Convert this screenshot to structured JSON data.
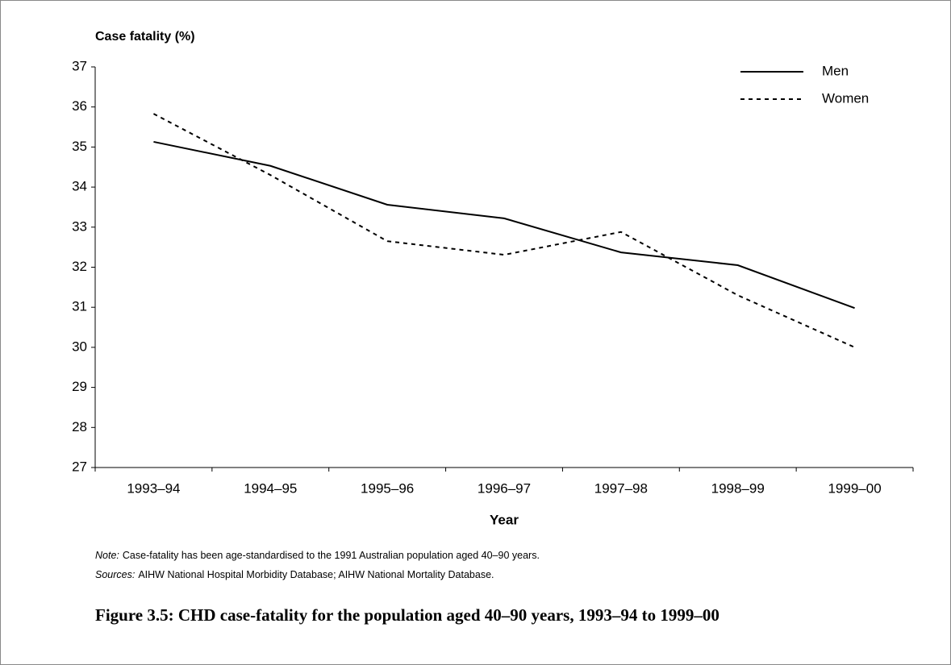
{
  "chart_data": {
    "type": "line",
    "ylabel": "Case fatality (%)",
    "xlabel": "Year",
    "categories": [
      "1993–94",
      "1994–95",
      "1995–96",
      "1996–97",
      "1997–98",
      "1998–99",
      "1999–00"
    ],
    "series": [
      {
        "name": "Men",
        "color": "#000000",
        "line_style": "solid",
        "values": [
          35.13,
          34.53,
          33.56,
          33.22,
          32.37,
          32.05,
          30.98
        ]
      },
      {
        "name": "Women",
        "color": "#000000",
        "line_style": "dotted",
        "values": [
          35.83,
          34.3,
          32.65,
          32.31,
          32.88,
          31.3,
          30.0
        ]
      }
    ],
    "ylim": [
      27,
      37
    ],
    "yticks": [
      27,
      28,
      29,
      30,
      31,
      32,
      33,
      34,
      35,
      36,
      37
    ],
    "legend": "upper right",
    "note_label": "Note:",
    "note": "Case-fatality has been age-standardised to the 1991 Australian population aged 40–90 years.",
    "sources_label": "Sources:",
    "sources": "AIHW National Hospital Morbidity Database; AIHW National Mortality Database.",
    "caption": "Figure 3.5: CHD case-fatality for the population aged 40–90 years, 1993–94 to 1999–00"
  }
}
